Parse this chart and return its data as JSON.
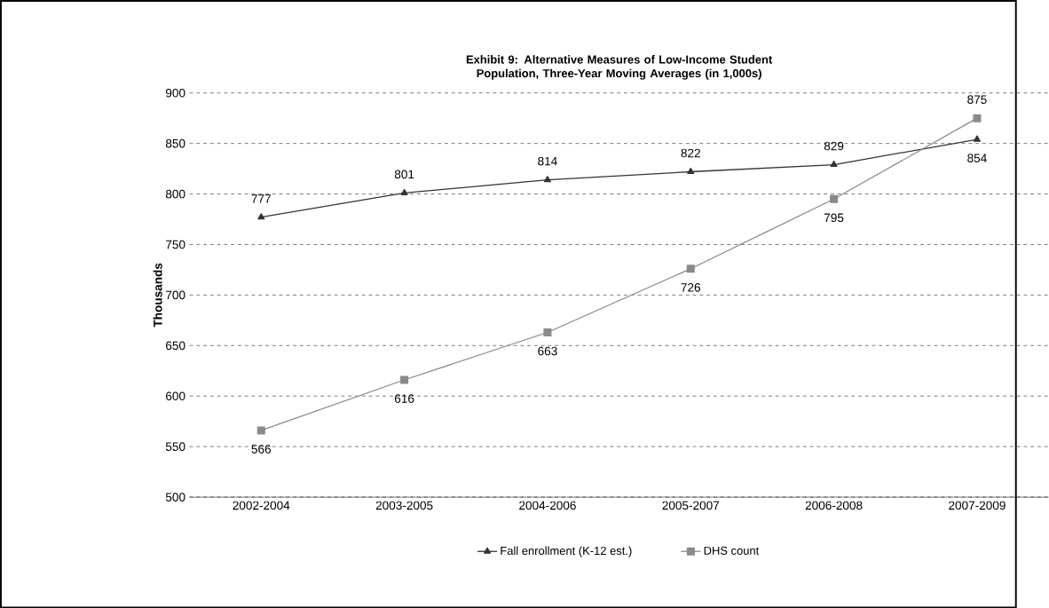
{
  "chart_data": {
    "type": "line",
    "title": "Exhibit 9:  Alternative Measures of Low-Income Student Population, Three-Year Moving Averages (in 1,000s)",
    "ylabel": "Thousands",
    "categories": [
      "2002-2004",
      "2003-2005",
      "2004-2006",
      "2005-2007",
      "2006-2008",
      "2007-2009"
    ],
    "series": [
      {
        "name": "Fall enrollment (K-12 est.)",
        "color": "#333333",
        "marker": "triangle",
        "values": [
          777,
          801,
          814,
          822,
          829,
          854
        ]
      },
      {
        "name": "DHS count",
        "color": "#8a8a8a",
        "marker": "square",
        "values": [
          566,
          616,
          663,
          726,
          795,
          875
        ]
      }
    ],
    "ylim": [
      500,
      900
    ],
    "yticks": [
      500,
      550,
      600,
      650,
      700,
      750,
      800,
      850,
      900
    ],
    "grid": "y",
    "legend": "bottom",
    "data_labels": true,
    "line_style": "solid"
  }
}
